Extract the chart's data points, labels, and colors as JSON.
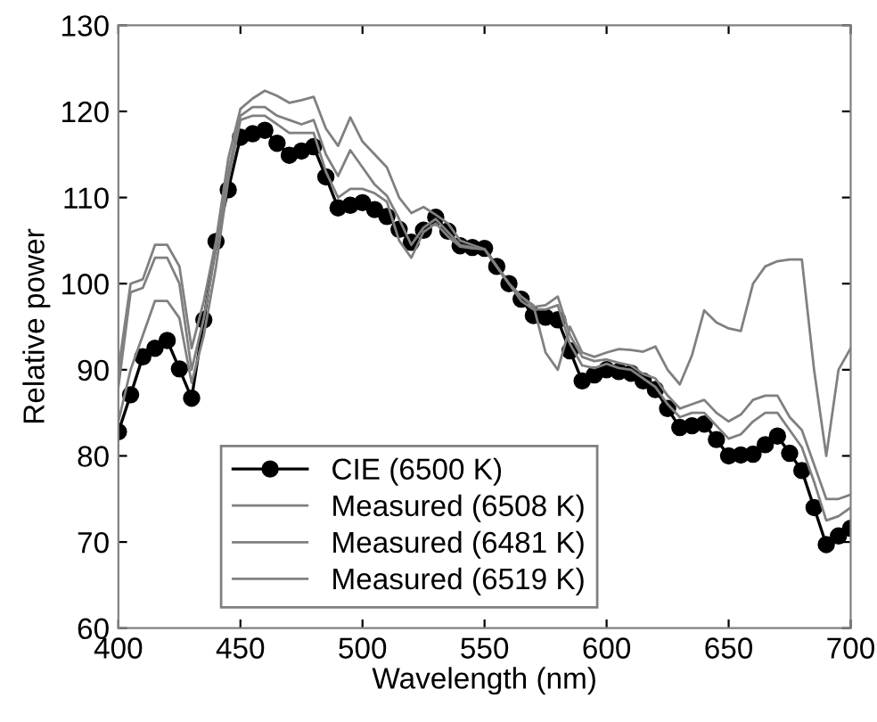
{
  "chart_data": {
    "type": "line",
    "xlabel": "Wavelength (nm)",
    "ylabel": "Relative power",
    "xlim": [
      400,
      700
    ],
    "ylim": [
      60,
      130
    ],
    "xticks": [
      400,
      450,
      500,
      550,
      600,
      650,
      700
    ],
    "yticks": [
      60,
      70,
      80,
      90,
      100,
      110,
      120,
      130
    ],
    "grid": false,
    "legend": "bottom left",
    "line_style": "solid",
    "x": [
      400,
      405,
      410,
      415,
      420,
      425,
      430,
      435,
      440,
      445,
      450,
      455,
      460,
      465,
      470,
      475,
      480,
      485,
      490,
      495,
      500,
      505,
      510,
      515,
      520,
      525,
      530,
      535,
      540,
      545,
      550,
      555,
      560,
      565,
      570,
      575,
      580,
      585,
      590,
      595,
      600,
      605,
      610,
      615,
      620,
      625,
      630,
      635,
      640,
      645,
      650,
      655,
      660,
      665,
      670,
      675,
      680,
      685,
      690,
      695,
      700
    ],
    "series": [
      {
        "name": "CIE (6500 K)",
        "color": "#000000",
        "marker": "circle",
        "values": [
          82.8,
          87.1,
          91.5,
          92.5,
          93.4,
          90.1,
          86.7,
          95.8,
          104.9,
          110.9,
          117,
          117.4,
          117.8,
          116.3,
          114.9,
          115.4,
          115.9,
          112.4,
          108.8,
          109.1,
          109.4,
          108.6,
          107.8,
          106.3,
          104.8,
          106.2,
          107.7,
          106.1,
          104.4,
          104.2,
          104.1,
          102,
          100,
          98.2,
          96.3,
          96.1,
          95.8,
          92.2,
          88.7,
          89.4,
          90,
          89.8,
          89.6,
          88.7,
          87.7,
          85.5,
          83.3,
          83.5,
          83.7,
          81.9,
          80,
          80.1,
          80.2,
          81.3,
          82.3,
          80.3,
          78.3,
          74,
          69.7,
          70.7,
          71.6
        ]
      },
      {
        "name": "Measured (6508 K)",
        "color": "#808080",
        "marker": "none",
        "values": [
          90,
          100,
          100.5,
          104.5,
          104.5,
          102,
          92.5,
          98,
          105,
          114.5,
          120.3,
          121.5,
          122.4,
          121.8,
          121,
          121.3,
          121.7,
          118,
          116,
          119.3,
          116.5,
          115,
          113.5,
          110,
          108.2,
          108.9,
          108,
          107,
          105,
          104.5,
          104,
          102,
          100,
          98.5,
          97.5,
          92,
          90,
          95,
          92,
          91.5,
          92,
          92.4,
          92.3,
          92.1,
          92.7,
          90,
          88.3,
          91.7,
          96.9,
          95.5,
          94.8,
          94.5,
          100,
          102,
          102.6,
          102.8,
          102.8,
          90,
          80,
          90,
          92.5
        ]
      },
      {
        "name": "Measured (6481 K)",
        "color": "#808080",
        "marker": "none",
        "values": [
          88,
          99,
          99.5,
          103,
          103,
          100,
          90,
          96,
          104,
          113,
          119.5,
          120.5,
          120.5,
          119.5,
          119,
          118.5,
          119,
          115,
          112.5,
          115.5,
          113.5,
          111.5,
          110.2,
          107.5,
          104.5,
          106.5,
          107.5,
          106,
          104.5,
          104.2,
          104,
          102,
          100,
          98.5,
          97.3,
          97.5,
          98.5,
          94,
          91.5,
          91,
          91.2,
          90.8,
          90.5,
          89.5,
          89,
          87,
          85.5,
          86,
          86.5,
          85,
          84,
          84.8,
          86.5,
          87,
          87,
          84.5,
          83,
          79,
          75,
          75,
          75.5
        ]
      },
      {
        "name": "Measured (6519 K)",
        "color": "#808080",
        "marker": "none",
        "values": [
          84,
          90,
          94,
          98,
          98,
          96,
          88.5,
          94,
          102,
          112,
          119,
          119.5,
          119.5,
          118.5,
          117.5,
          117.5,
          117.5,
          113,
          110,
          111,
          111,
          110.5,
          109.5,
          105,
          103,
          106,
          107,
          105.5,
          104.3,
          104.1,
          104,
          102,
          100,
          98,
          97,
          97,
          97.5,
          93,
          90.5,
          90.2,
          90.7,
          90.2,
          90,
          89,
          88,
          86,
          84.5,
          85,
          85,
          83.5,
          82,
          82.5,
          84,
          85,
          85,
          83,
          81,
          77,
          72.5,
          73,
          74
        ]
      }
    ]
  }
}
